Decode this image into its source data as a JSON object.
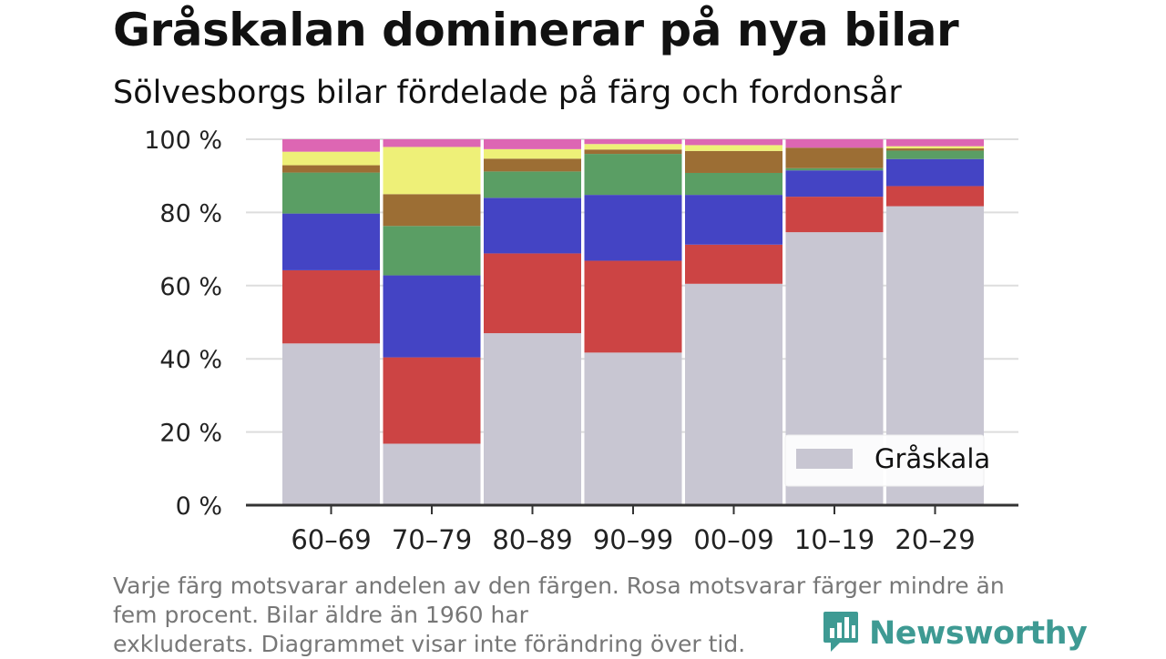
{
  "title": "Gråskalan dominerar på nya bilar",
  "subtitle": "Sölvesborgs bilar fördelade på färg och fordonsår",
  "caption": {
    "line1": "Varje färg motsvarar andelen av den färgen. Rosa motsvarar färger mindre än",
    "line2": "fem procent. Bilar äldre än 1960 har",
    "line3": "exkluderats. Diagrammet visar inte förändring över tid."
  },
  "brand": {
    "name": "Newsworthy",
    "icon": "newsworthy-logo-icon",
    "color": "#3e9a93"
  },
  "chart_data": {
    "type": "bar",
    "stacked": true,
    "categories": [
      "60–69",
      "70–79",
      "80–89",
      "90–99",
      "00–09",
      "10–19",
      "20–29"
    ],
    "ylim": [
      0,
      100
    ],
    "yticks": [
      0,
      20,
      40,
      60,
      80,
      100
    ],
    "ytick_labels": [
      "0 %",
      "20 %",
      "40 %",
      "60 %",
      "80 %",
      "100 %"
    ],
    "grid": true,
    "legend": {
      "position": "bottom-right",
      "entries": [
        "Gråskala"
      ]
    },
    "series": [
      {
        "name": "Gråskala",
        "color": "#c8c6d2",
        "values": [
          44.2,
          16.8,
          47.0,
          41.7,
          60.5,
          74.6,
          81.7
        ]
      },
      {
        "color": "#cc4444",
        "values": [
          20.0,
          23.6,
          21.8,
          25.1,
          10.7,
          9.7,
          5.5
        ]
      },
      {
        "color": "#4444c4",
        "values": [
          15.5,
          22.4,
          15.2,
          18.0,
          13.6,
          7.2,
          7.4
        ]
      },
      {
        "color": "#5a9e64",
        "values": [
          11.2,
          13.5,
          7.2,
          11.2,
          6.0,
          0.6,
          2.3
        ]
      },
      {
        "color": "#9c6e34",
        "values": [
          2.0,
          8.7,
          3.5,
          1.2,
          6.0,
          5.6,
          0.6
        ]
      },
      {
        "color": "#eef078",
        "values": [
          3.7,
          12.9,
          2.6,
          1.5,
          1.6,
          0.0,
          0.6
        ]
      },
      {
        "color": "#dd66b3",
        "values": [
          3.4,
          2.1,
          2.7,
          1.3,
          1.6,
          2.3,
          1.9
        ]
      }
    ]
  }
}
